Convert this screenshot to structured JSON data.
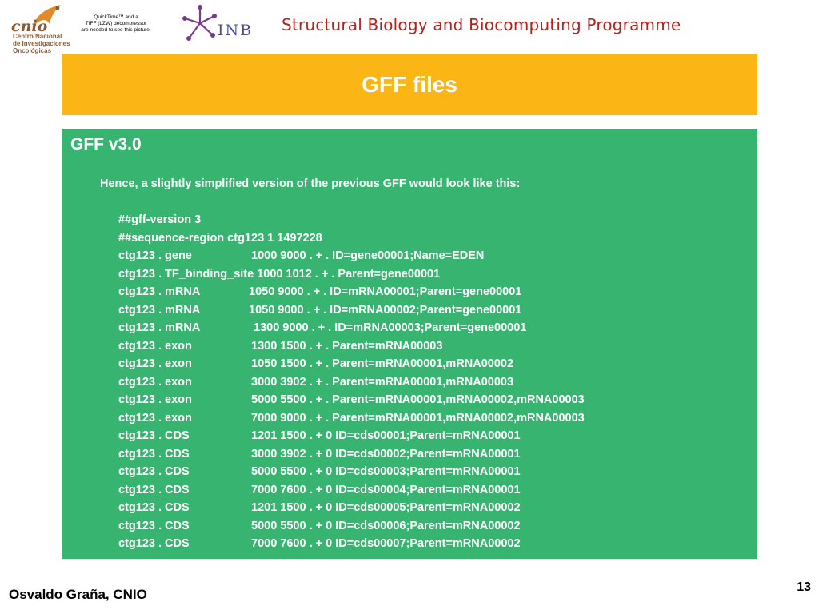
{
  "header": {
    "cnio_logo": {
      "word": "cnio",
      "lines": [
        "Centro Nacional",
        "de Investigaciones",
        "Oncológicas"
      ]
    },
    "quicktime_notice": [
      "QuickTime™ and a",
      "TIFF (LZW) decompressor",
      "are needed to see this picture."
    ],
    "inb_logo": {
      "text": "INB",
      "icon": "molecule-star-icon"
    },
    "programme_title": "Structural Biology and Biocomputing Programme"
  },
  "slide": {
    "title": "GFF files",
    "heading": "GFF v3.0",
    "intro": "Hence, a slightly simplified version of the previous GFF  would look like this:",
    "directives": [
      "##gff-version   3",
      "##sequence-region   ctg123 1 1497228"
    ],
    "features": [
      {
        "seq": "ctg123 . gene",
        "rest": "1000  9000  .  +  .  ID=gene00001;Name=EDEN"
      },
      {
        "seq": "ctg123 . TF_binding_site 1000  1012  .  +  .  Parent=gene00001",
        "rest": ""
      },
      {
        "seq": "ctg123 . mRNA",
        "rest": "1050  9000  .  +  .  ID=mRNA00001;Parent=gene00001"
      },
      {
        "seq": "ctg123 . mRNA",
        "rest": "1050  9000  .  +  .  ID=mRNA00002;Parent=gene00001"
      },
      {
        "seq": "ctg123 . mRNA",
        "rest": "1300  9000  .  +  .  ID=mRNA00003;Parent=gene00001"
      },
      {
        "seq": "ctg123 . exon",
        "rest": "1300  1500  .  +  .  Parent=mRNA00003"
      },
      {
        "seq": "ctg123 . exon",
        "rest": "1050  1500  .  +  .  Parent=mRNA00001,mRNA00002"
      },
      {
        "seq": "ctg123 . exon",
        "rest": "3000  3902  .  +  .  Parent=mRNA00001,mRNA00003"
      },
      {
        "seq": "ctg123 . exon",
        "rest": "5000  5500  .  +  .  Parent=mRNA00001,mRNA00002,mRNA00003"
      },
      {
        "seq": "ctg123 . exon",
        "rest": "7000  9000  .  +  .  Parent=mRNA00001,mRNA00002,mRNA00003"
      },
      {
        "seq": "ctg123 . CDS",
        "rest": "1201  1500  .  +  0  ID=cds00001;Parent=mRNA00001"
      },
      {
        "seq": "ctg123 . CDS",
        "rest": "3000  3902  .  +  0  ID=cds00002;Parent=mRNA00001"
      },
      {
        "seq": "ctg123 . CDS",
        "rest": "5000  5500  .  +  0  ID=cds00003;Parent=mRNA00001"
      },
      {
        "seq": "ctg123 . CDS",
        "rest": "7000  7600  .  +  0  ID=cds00004;Parent=mRNA00001"
      },
      {
        "seq": "ctg123 . CDS",
        "rest": "1201  1500  .  +  0  ID=cds00005;Parent=mRNA00002"
      },
      {
        "seq": "ctg123 . CDS",
        "rest": "5000  5500  .  +  0  ID=cds00006;Parent=mRNA00002"
      },
      {
        "seq": "ctg123 . CDS",
        "rest": "7000  7600  .  +  0  ID=cds00007;Parent=mRNA00002"
      }
    ]
  },
  "footer": {
    "author": "Osvaldo Graña, CNIO",
    "page_number": "13"
  },
  "colors": {
    "title_band": "#fbb514",
    "panel": "#38b471",
    "programme_title": "#b8201a",
    "inb_text": "#4a4a9a",
    "cnio_brown": "#8a5a34"
  }
}
